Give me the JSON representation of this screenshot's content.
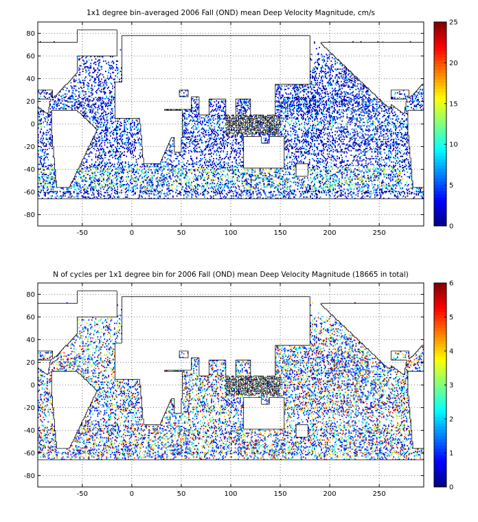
{
  "chart_data": [
    {
      "type": "heatmap",
      "title": "1x1 degree bin–averaged 2006 Fall (OND) mean Deep Velocity Magnitude, cm/s",
      "xlabel": "",
      "ylabel": "",
      "xlim": [
        -95,
        295
      ],
      "ylim": [
        -90,
        90
      ],
      "xticks": [
        -50,
        0,
        50,
        100,
        150,
        200,
        250
      ],
      "yticks": [
        80,
        60,
        40,
        20,
        0,
        -20,
        -40,
        -60,
        -80
      ],
      "grid": true,
      "colorbar": {
        "colormap": "jet",
        "range": [
          0,
          25
        ],
        "ticks": [
          0,
          5,
          10,
          15,
          20,
          25
        ]
      },
      "value_distribution_hint": "mostly 0-8 cm/s (dark blue to cyan) over the global ocean, scattered 8-15 in western boundary currents, equatorial bands and Southern Ocean, rare 15-25 in the Antarctic Circumpolar Current"
    },
    {
      "type": "heatmap",
      "title": "N of cycles per 1x1 degree bin for 2006 Fall (OND) mean Deep Velocity Magnitude (18665 in total)",
      "xlabel": "",
      "ylabel": "",
      "xlim": [
        -95,
        295
      ],
      "ylim": [
        -90,
        90
      ],
      "xticks": [
        -50,
        0,
        50,
        100,
        150,
        200,
        250
      ],
      "yticks": [
        80,
        60,
        40,
        20,
        0,
        -20,
        -40,
        -60,
        -80
      ],
      "grid": true,
      "colorbar": {
        "colormap": "jet",
        "range": [
          0,
          6
        ],
        "ticks": [
          0,
          1,
          2,
          3,
          4,
          5,
          6
        ]
      },
      "value_distribution_hint": "mostly 1-2 cycles per bin (blue), frequent 3-4 (cyan/yellow), scattered 5-6 (orange/red), densest in North Pacific and Atlantic"
    }
  ]
}
